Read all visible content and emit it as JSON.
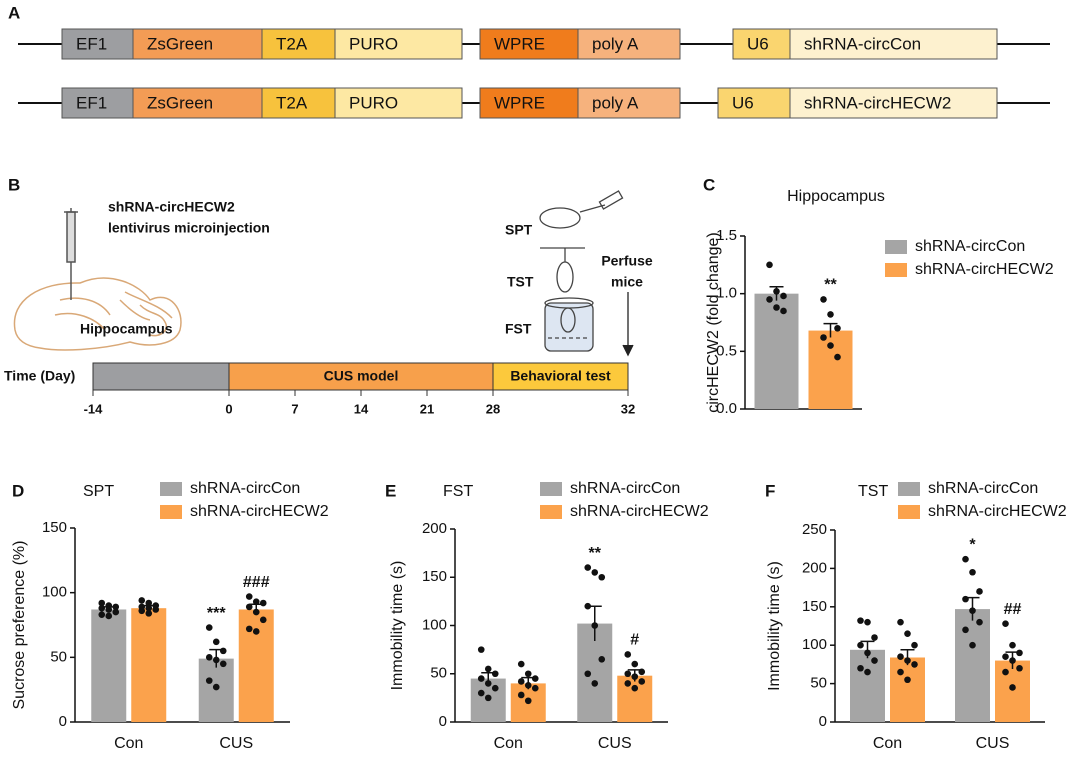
{
  "panel_a": {
    "letter": "A",
    "rows": [
      {
        "elements": [
          {
            "label": "EF1",
            "color": "#9d9ea1"
          },
          {
            "label": "ZsGreen",
            "color": "#f39c55"
          },
          {
            "label": "T2A",
            "color": "#f7c23d"
          },
          {
            "label": "PURO",
            "color": "#fde8a3"
          },
          {
            "label": "WPRE",
            "color": "#f07c1c"
          },
          {
            "label": "poly A",
            "color": "#f6b27d"
          },
          {
            "label": "U6",
            "color": "#fad56f"
          },
          {
            "label": "shRNA-circCon",
            "color": "#fdf1cf"
          }
        ]
      },
      {
        "elements": [
          {
            "label": "EF1",
            "color": "#9d9ea1"
          },
          {
            "label": "ZsGreen",
            "color": "#f39c55"
          },
          {
            "label": "T2A",
            "color": "#f7c23d"
          },
          {
            "label": "PURO",
            "color": "#fde8a3"
          },
          {
            "label": "WPRE",
            "color": "#f07c1c"
          },
          {
            "label": "poly A",
            "color": "#f6b27d"
          },
          {
            "label": "U6",
            "color": "#fad56f"
          },
          {
            "label": "shRNA-circHECW2",
            "color": "#fdf1cf"
          }
        ]
      }
    ]
  },
  "panel_b": {
    "letter": "B",
    "injection": [
      "shRNA-circHECW2",
      "lentivirus microinjection"
    ],
    "region": "Hippocampus",
    "tests": [
      "SPT",
      "TST",
      "FST"
    ],
    "end": [
      "Perfuse",
      "mice"
    ],
    "axis_label": "Time (Day)",
    "phases": [
      {
        "start": -14,
        "end": 0,
        "color": "#9d9ea1"
      },
      {
        "label": "CUS model",
        "start": 0,
        "end": 28,
        "color": "#f7a04b"
      },
      {
        "label": "Behavioral test",
        "start": 28,
        "end": 32,
        "color": "#fcc93c"
      }
    ],
    "ticks": [
      -14,
      0,
      7,
      14,
      21,
      28,
      32
    ]
  },
  "chart_data": [
    {
      "type": "bar",
      "panel": "C",
      "title": "Hippocampus",
      "y_label": "circHECW2 (fold change)",
      "ylim": [
        0,
        1.5
      ],
      "yticks": [
        {
          "value": 0,
          "label": "0.0"
        },
        0.5,
        {
          "value": 1,
          "label": "1.0"
        },
        1.5
      ],
      "series": [
        {
          "name": "shRNA-circCon",
          "color": "#a5a5a5",
          "values": [
            1.0
          ],
          "errors": [
            0.06
          ],
          "points": [
            [
              1.25,
              1.02,
              0.98,
              0.95,
              0.88,
              0.85
            ]
          ]
        },
        {
          "name": "shRNA-circHECW2",
          "color": "#fba24c",
          "values": [
            0.68
          ],
          "errors": [
            0.06
          ],
          "annotations": [
            "**"
          ],
          "points": [
            [
              0.95,
              0.82,
              0.7,
              0.62,
              0.55,
              0.45
            ]
          ]
        }
      ]
    },
    {
      "type": "bar",
      "panel": "D",
      "title": "SPT",
      "y_label": "Sucrose preference (%)",
      "categories": [
        "Con",
        "CUS"
      ],
      "ylim": [
        0,
        150
      ],
      "yticks": [
        0,
        50,
        100,
        150
      ],
      "series": [
        {
          "name": "shRNA-circCon",
          "color": "#a5a5a5",
          "values": [
            87,
            49
          ],
          "errors": [
            2,
            7
          ],
          "annotations": [
            null,
            "***"
          ],
          "points": [
            [
              92,
              90,
              89,
              88,
              87,
              85,
              83,
              82
            ],
            [
              73,
              62,
              55,
              50,
              48,
              45,
              32,
              27
            ]
          ]
        },
        {
          "name": "shRNA-circHECW2",
          "color": "#fba24c",
          "values": [
            88,
            87
          ],
          "errors": [
            2,
            4
          ],
          "annotations": [
            null,
            "###"
          ],
          "points": [
            [
              94,
              92,
              90,
              89,
              88,
              87,
              86,
              84
            ],
            [
              97,
              93,
              92,
              89,
              85,
              79,
              72,
              70
            ]
          ]
        }
      ]
    },
    {
      "type": "bar",
      "panel": "E",
      "title": "FST",
      "y_label": "Immobility time (s)",
      "categories": [
        "Con",
        "CUS"
      ],
      "ylim": [
        0,
        200
      ],
      "yticks": [
        0,
        50,
        100,
        150,
        200
      ],
      "series": [
        {
          "name": "shRNA-circCon",
          "color": "#a5a5a5",
          "values": [
            45,
            102
          ],
          "errors": [
            6,
            18
          ],
          "annotations": [
            null,
            "**"
          ],
          "points": [
            [
              75,
              55,
              50,
              45,
              40,
              35,
              30,
              25
            ],
            [
              160,
              155,
              150,
              120,
              100,
              65,
              50,
              40
            ]
          ]
        },
        {
          "name": "shRNA-circHECW2",
          "color": "#fba24c",
          "values": [
            40,
            48
          ],
          "errors": [
            6,
            6
          ],
          "annotations": [
            null,
            "#"
          ],
          "points": [
            [
              60,
              50,
              45,
              42,
              38,
              35,
              28,
              22
            ],
            [
              70,
              60,
              52,
              50,
              47,
              42,
              40,
              35
            ]
          ]
        }
      ]
    },
    {
      "type": "bar",
      "panel": "F",
      "title": "TST",
      "y_label": "Immobility time (s)",
      "categories": [
        "Con",
        "CUS"
      ],
      "ylim": [
        0,
        250
      ],
      "yticks": [
        0,
        50,
        100,
        150,
        200,
        250
      ],
      "series": [
        {
          "name": "shRNA-circCon",
          "color": "#a5a5a5",
          "values": [
            94,
            147
          ],
          "errors": [
            11,
            15
          ],
          "annotations": [
            null,
            "*"
          ],
          "points": [
            [
              132,
              130,
              110,
              100,
              90,
              80,
              70,
              65
            ],
            [
              212,
              195,
              170,
              160,
              145,
              130,
              120,
              100
            ]
          ]
        },
        {
          "name": "shRNA-circHECW2",
          "color": "#fba24c",
          "values": [
            84,
            80
          ],
          "errors": [
            10,
            11
          ],
          "annotations": [
            null,
            "##"
          ],
          "points": [
            [
              130,
              115,
              100,
              85,
              80,
              75,
              65,
              55
            ],
            [
              128,
              100,
              90,
              85,
              80,
              70,
              65,
              45
            ]
          ]
        }
      ]
    }
  ]
}
